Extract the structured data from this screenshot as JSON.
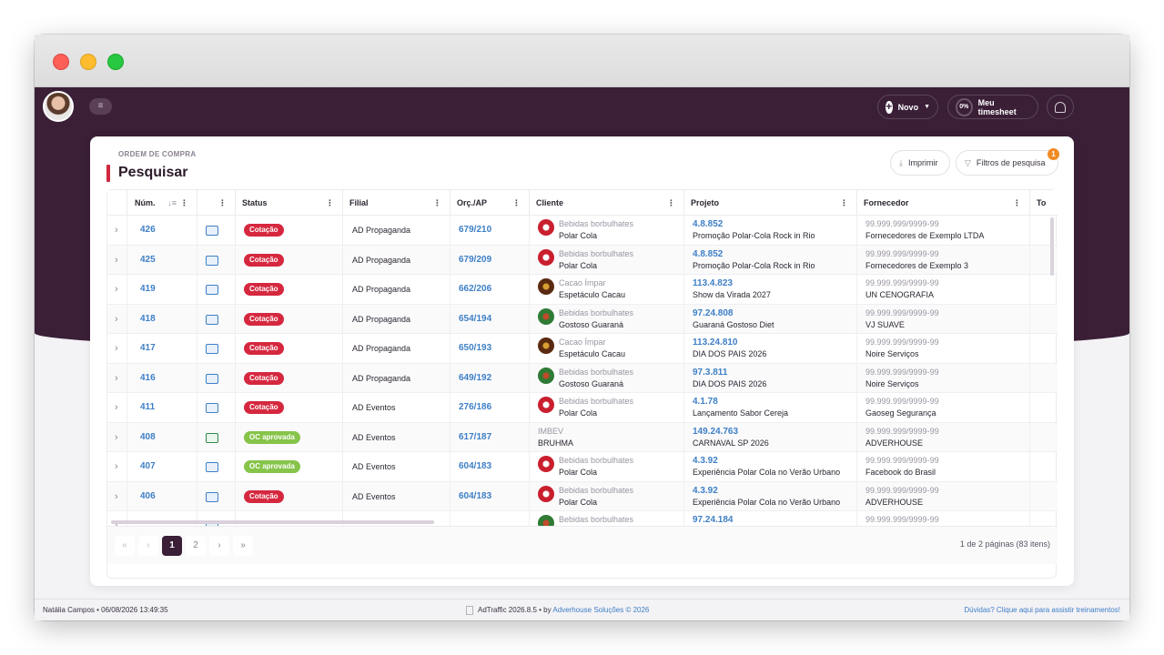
{
  "header": {
    "novo_label": "Novo",
    "timesheet_pct": "0%",
    "timesheet_label": "Meu timesheet"
  },
  "page": {
    "kicker": "ORDEM DE COMPRA",
    "title": "Pesquisar",
    "print_label": "Imprimir",
    "filter_label": "Filtros de pesquisa",
    "filter_count": "1"
  },
  "columns": {
    "num": "Núm.",
    "status": "Status",
    "filial": "Filial",
    "orc": "Orç./AP",
    "cliente": "Cliente",
    "projeto": "Projeto",
    "fornecedor": "Fornecedor",
    "total": "To"
  },
  "rows": [
    {
      "num": "426",
      "icon": "building-icon",
      "status": "Cotação",
      "status_color": "#d5283f",
      "filial": "AD Propaganda",
      "orc": "679/210",
      "logo": "red",
      "cli_group": "Bebidas borbulhates",
      "cli_name": "Polar Cola",
      "proj_code": "4.8.852",
      "proj_name": "Promoção Polar-Cola Rock in Rio",
      "forn_doc": "99.999.999/9999-99",
      "forn_name": "Fornecedores de Exemplo LTDA"
    },
    {
      "num": "425",
      "icon": "building-icon",
      "status": "Cotação",
      "status_color": "#d5283f",
      "filial": "AD Propaganda",
      "orc": "679/209",
      "logo": "red",
      "cli_group": "Bebidas borbulhates",
      "cli_name": "Polar Cola",
      "proj_code": "4.8.852",
      "proj_name": "Promoção Polar-Cola Rock in Rio",
      "forn_doc": "99.999.999/9999-99",
      "forn_name": "Fornecedores de Exemplo 3"
    },
    {
      "num": "419",
      "icon": "building-icon",
      "status": "Cotação",
      "status_color": "#d5283f",
      "filial": "AD Propaganda",
      "orc": "662/206",
      "logo": "brown",
      "cli_group": "Cacao Ímpar",
      "cli_name": "Espetáculo Cacau",
      "proj_code": "113.4.823",
      "proj_name": "Show da Virada 2027",
      "forn_doc": "99.999.999/9999-99",
      "forn_name": "UN CENOGRAFIA"
    },
    {
      "num": "418",
      "icon": "building-icon",
      "status": "Cotação",
      "status_color": "#d5283f",
      "filial": "AD Propaganda",
      "orc": "654/194",
      "logo": "green",
      "cli_group": "Bebidas borbulhates",
      "cli_name": "Gostoso Guaraná",
      "proj_code": "97.24.808",
      "proj_name": "Guaraná Gostoso Diet",
      "forn_doc": "99.999.999/9999-99",
      "forn_name": "VJ SUAVE"
    },
    {
      "num": "417",
      "icon": "building-icon",
      "status": "Cotação",
      "status_color": "#d5283f",
      "filial": "AD Propaganda",
      "orc": "650/193",
      "logo": "brown",
      "cli_group": "Cacao Ímpar",
      "cli_name": "Espetáculo Cacau",
      "proj_code": "113.24.810",
      "proj_name": "DIA DOS PAIS 2026",
      "forn_doc": "99.999.999/9999-99",
      "forn_name": "Noire Serviços"
    },
    {
      "num": "416",
      "icon": "building-icon",
      "status": "Cotação",
      "status_color": "#d5283f",
      "filial": "AD Propaganda",
      "orc": "649/192",
      "logo": "green",
      "cli_group": "Bebidas borbulhates",
      "cli_name": "Gostoso Guaraná",
      "proj_code": "97.3.811",
      "proj_name": "DIA DOS PAIS 2026",
      "forn_doc": "99.999.999/9999-99",
      "forn_name": "Noire Serviços"
    },
    {
      "num": "411",
      "icon": "building-icon",
      "status": "Cotação",
      "status_color": "#d5283f",
      "filial": "AD Eventos",
      "orc": "276/186",
      "logo": "red",
      "cli_group": "Bebidas borbulhates",
      "cli_name": "Polar Cola",
      "proj_code": "4.1.78",
      "proj_name": "Lançamento Sabor Cereja",
      "forn_doc": "99.999.999/9999-99",
      "forn_name": "Gaoseg Segurança"
    },
    {
      "num": "408",
      "icon": "mail-icon",
      "status": "OC aprovada",
      "status_color": "#86c44a",
      "filial": "AD Eventos",
      "orc": "617/187",
      "logo": "",
      "cli_group": "IMBEV",
      "cli_name": "BRUHMA",
      "proj_code": "149.24.763",
      "proj_name": "CARNAVAL SP 2026",
      "forn_doc": "99.999.999/9999-99",
      "forn_name": "ADVERHOUSE"
    },
    {
      "num": "407",
      "icon": "building-icon",
      "status": "OC aprovada",
      "status_color": "#86c44a",
      "filial": "AD Eventos",
      "orc": "604/183",
      "logo": "red",
      "cli_group": "Bebidas borbulhates",
      "cli_name": "Polar Cola",
      "proj_code": "4.3.92",
      "proj_name": "Experiência Polar Cola no Verão Urbano",
      "forn_doc": "99.999.999/9999-99",
      "forn_name": "Facebook do Brasil"
    },
    {
      "num": "406",
      "icon": "building-icon",
      "status": "Cotação",
      "status_color": "#d5283f",
      "filial": "AD Eventos",
      "orc": "604/183",
      "logo": "red",
      "cli_group": "Bebidas borbulhates",
      "cli_name": "Polar Cola",
      "proj_code": "4.3.92",
      "proj_name": "Experiência Polar Cola no Verão Urbano",
      "forn_doc": "99.999.999/9999-99",
      "forn_name": "ADVERHOUSE"
    },
    {
      "num": "",
      "icon": "building-icon",
      "status": "",
      "status_color": "#d5283f",
      "filial": "",
      "orc": "",
      "logo": "green",
      "cli_group": "Bebidas borbulhates",
      "cli_name": "",
      "proj_code": "97.24.184",
      "proj_name": "",
      "forn_doc": "99.999.999/9999-99",
      "forn_name": ""
    }
  ],
  "pager": {
    "first": "«",
    "prev": "‹",
    "pages": [
      "1",
      "2"
    ],
    "next": "›",
    "last": "»",
    "info": "1 de 2 páginas (83 itens)"
  },
  "footer": {
    "user": "Natália Campos • 06/08/2026 13:49:35",
    "app": "AdTraffic 2026.8.5 • by",
    "company": "Adverhouse Soluções © 2026",
    "help": "Dúvidas? Clique aqui para assistir treinamentos!"
  }
}
